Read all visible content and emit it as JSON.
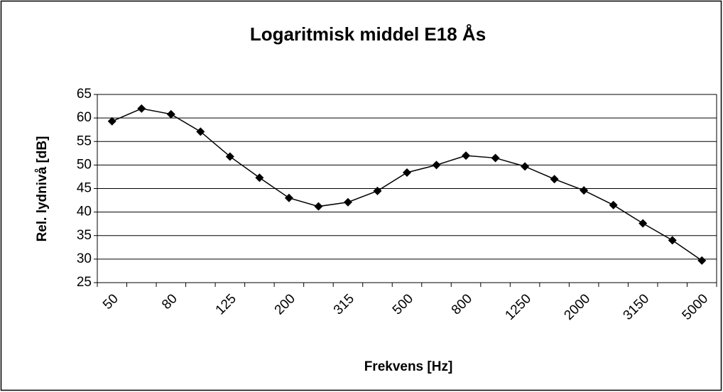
{
  "chart_data": {
    "type": "line",
    "title": "Logaritmisk middel E18 Ås",
    "x_label": "Frekvens [Hz]",
    "y_label": "Rel. lydnivå [dB]",
    "categories": [
      "50",
      null,
      "80",
      null,
      "125",
      null,
      "200",
      null,
      "315",
      null,
      "500",
      null,
      "800",
      null,
      "1250",
      null,
      "2000",
      null,
      "3150",
      null,
      "5000"
    ],
    "series": [
      {
        "color": "#000000",
        "values": [
          59.3,
          62,
          60.8,
          57.1,
          51.8,
          47.3,
          43,
          41.2,
          42.1,
          44.5,
          48.4,
          50,
          52,
          51.5,
          49.7,
          47,
          44.6,
          41.5,
          37.6,
          34,
          29.7
        ]
      }
    ],
    "ylim": [
      25,
      65
    ],
    "yticks": [
      25,
      30,
      35,
      40,
      45,
      50,
      55,
      60,
      65
    ],
    "grid": true
  }
}
